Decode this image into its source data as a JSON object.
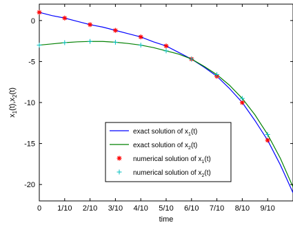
{
  "chart_data": {
    "type": "line",
    "xlabel": "time",
    "ylabel": "x_1(t),x_2(t)",
    "xlim": [
      0,
      1
    ],
    "ylim": [
      -22,
      2
    ],
    "x_ticks": [
      "0",
      "1/10",
      "2/10",
      "3/10",
      "4/10",
      "5/10",
      "6/10",
      "7/10",
      "8/10",
      "9/10"
    ],
    "y_ticks": [
      0,
      -5,
      -10,
      -15,
      -20
    ],
    "grid": false,
    "legend_position": "lower-center",
    "series": [
      {
        "name": "exact solution of x_1(t)",
        "kind": "line",
        "color": "#0000ff",
        "x": [
          0,
          0.05,
          0.1,
          0.15,
          0.2,
          0.25,
          0.3,
          0.35,
          0.4,
          0.45,
          0.5,
          0.55,
          0.6,
          0.65,
          0.7,
          0.75,
          0.8,
          0.85,
          0.9,
          0.95,
          1.0
        ],
        "y": [
          1.0,
          0.6,
          0.3,
          -0.1,
          -0.5,
          -0.8,
          -1.2,
          -1.6,
          -2.0,
          -2.6,
          -3.1,
          -3.9,
          -4.7,
          -5.7,
          -6.8,
          -8.3,
          -10.0,
          -12.2,
          -14.6,
          -17.6,
          -21.0
        ]
      },
      {
        "name": "exact solution of x_2(t)",
        "kind": "line",
        "color": "#008000",
        "x": [
          0,
          0.05,
          0.1,
          0.15,
          0.2,
          0.25,
          0.3,
          0.35,
          0.4,
          0.45,
          0.5,
          0.55,
          0.6,
          0.65,
          0.7,
          0.75,
          0.8,
          0.85,
          0.9,
          0.95,
          1.0
        ],
        "y": [
          -3.0,
          -2.85,
          -2.7,
          -2.6,
          -2.55,
          -2.55,
          -2.65,
          -2.8,
          -3.0,
          -3.3,
          -3.7,
          -4.1,
          -4.7,
          -5.6,
          -6.6,
          -7.9,
          -9.5,
          -11.5,
          -13.9,
          -16.8,
          -20.3
        ]
      },
      {
        "name": "numerical solution of x_1(t)",
        "kind": "marker",
        "marker": "asterisk",
        "color": "#ff0000",
        "x": [
          0,
          0.1,
          0.2,
          0.3,
          0.4,
          0.5,
          0.6,
          0.7,
          0.8,
          0.9
        ],
        "y": [
          1.0,
          0.3,
          -0.5,
          -1.2,
          -2.0,
          -3.1,
          -4.7,
          -6.8,
          -10.0,
          -14.6
        ]
      },
      {
        "name": "numerical solution of x_2(t)",
        "kind": "marker",
        "marker": "plus",
        "color": "#00bfbf",
        "x": [
          0,
          0.1,
          0.2,
          0.3,
          0.4,
          0.5,
          0.6,
          0.7,
          0.8,
          0.9
        ],
        "y": [
          -3.0,
          -2.7,
          -2.55,
          -2.65,
          -3.0,
          -3.7,
          -4.7,
          -6.6,
          -9.5,
          -13.9
        ]
      }
    ]
  }
}
